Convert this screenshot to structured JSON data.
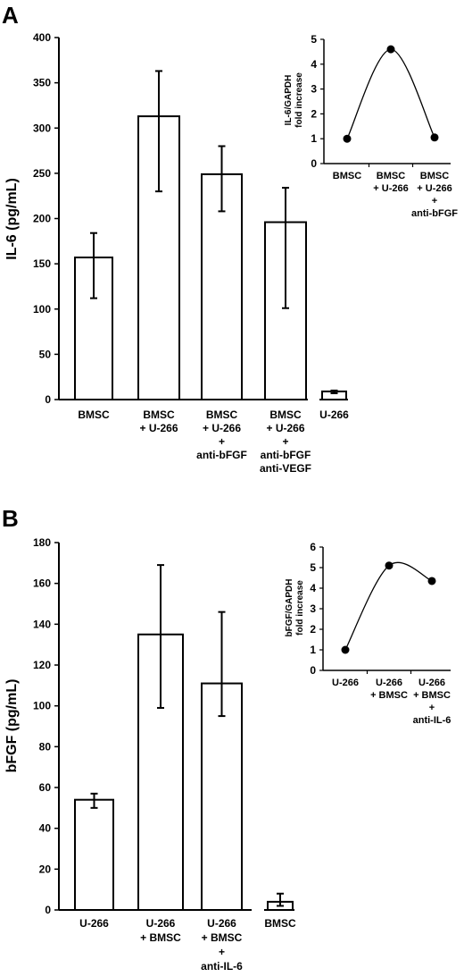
{
  "chart_data": [
    {
      "panel": "A",
      "type": "bar",
      "ylabel": "IL-6 (pg/mL)",
      "ylim": [
        0,
        400
      ],
      "yticks": [
        "0",
        "50",
        "100",
        "150",
        "200",
        "250",
        "300",
        "350",
        "400"
      ],
      "categories": [
        [
          "BMSC"
        ],
        [
          "BMSC",
          "+ U-266"
        ],
        [
          "BMSC",
          "+ U-266",
          "+",
          "anti-bFGF"
        ],
        [
          "BMSC",
          "+ U-266",
          "+",
          "anti-bFGF",
          "anti-VEGF"
        ],
        [
          "U-266"
        ]
      ],
      "values": [
        157,
        313,
        249,
        196,
        9
      ],
      "error_low": [
        112,
        230,
        208,
        101,
        7
      ],
      "error_high": [
        184,
        363,
        280,
        234,
        10
      ],
      "inset": {
        "type": "line",
        "ylabel": [
          "IL-6/GAPDH",
          "fold increase"
        ],
        "ylim": [
          0,
          5
        ],
        "yticks": [
          "0",
          "1",
          "2",
          "3",
          "4",
          "5"
        ],
        "categories": [
          [
            "BMSC"
          ],
          [
            "BMSC",
            "+ U-266"
          ],
          [
            "BMSC",
            "+ U-266",
            "+",
            "anti-bFGF"
          ]
        ],
        "values": [
          1.0,
          4.6,
          1.05
        ]
      }
    },
    {
      "panel": "B",
      "type": "bar",
      "ylabel": "bFGF (pg/mL)",
      "ylim": [
        0,
        180
      ],
      "yticks": [
        "0",
        "20",
        "40",
        "60",
        "80",
        "100",
        "120",
        "140",
        "160",
        "180"
      ],
      "categories": [
        [
          "U-266"
        ],
        [
          "U-266",
          "+ BMSC"
        ],
        [
          "U-266",
          "+ BMSC",
          "+",
          "anti-IL-6"
        ],
        [
          "BMSC"
        ]
      ],
      "values": [
        54,
        135,
        111,
        4
      ],
      "error_low": [
        50,
        99,
        95,
        2
      ],
      "error_high": [
        57,
        169,
        146,
        8
      ],
      "inset": {
        "type": "line",
        "ylabel": [
          "bFGF/GAPDH",
          "fold increase"
        ],
        "ylim": [
          0,
          6
        ],
        "yticks": [
          "0",
          "1",
          "2",
          "3",
          "4",
          "5",
          "6"
        ],
        "categories": [
          [
            "U-266"
          ],
          [
            "U-266",
            "+ BMSC"
          ],
          [
            "U-266",
            "+ BMSC",
            "+",
            "anti-IL-6"
          ]
        ],
        "values": [
          1.0,
          5.1,
          4.35
        ]
      }
    }
  ]
}
